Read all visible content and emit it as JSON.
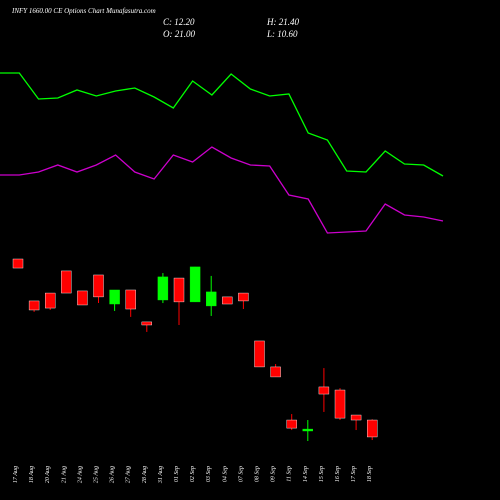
{
  "header": {
    "title": "INFY 1660.00 CE Options Chart Munafasutra.com",
    "close": "C: 12.20",
    "high": "H: 21.40",
    "open": "O: 21.00",
    "low": "L: 10.60"
  },
  "chart_data": [
    {
      "type": "line",
      "series": [
        {
          "color": "#00ff00",
          "values": [
            177,
            177,
            151,
            152,
            160,
            154,
            159,
            162,
            153,
            142,
            169,
            155,
            176,
            161,
            154,
            156,
            117,
            110,
            79,
            78,
            99,
            86,
            85,
            74
          ]
        },
        {
          "color": "#cc00cc",
          "values": [
            75,
            75,
            78,
            85,
            78,
            85,
            95,
            78,
            71,
            95,
            88,
            103,
            92,
            85,
            84,
            55,
            51,
            17,
            18,
            19,
            46,
            35,
            33,
            29
          ]
        }
      ]
    },
    {
      "type": "candlestick",
      "up_color": "#00ff00",
      "down_color": "#ff0000",
      "categories": [
        "17 Aug",
        "18 Aug",
        "20 Aug",
        "21 Aug",
        "24 Aug",
        "25 Aug",
        "26 Aug",
        "27 Aug",
        "28 Aug",
        "31 Aug",
        "01 Sep",
        "02 Sep",
        "03 Sep",
        "04 Sep",
        "07 Sep",
        "08 Sep",
        "09 Sep",
        "11 Sep",
        "14 Sep",
        "15 Sep",
        "16 Sep",
        "17 Sep",
        "18 Sep"
      ],
      "open": [
        104.7,
        82.9,
        87.0,
        98.5,
        88.1,
        96.4,
        81.3,
        88.6,
        72.0,
        83.4,
        94.8,
        82.4,
        80.3,
        85.0,
        87.0,
        62.1,
        48.6,
        21.0,
        15.3,
        38.2,
        36.6,
        23.6,
        21.0
      ],
      "high": [
        104.7,
        82.9,
        87.0,
        98.5,
        88.1,
        96.4,
        88.6,
        88.6,
        72.0,
        97.4,
        94.8,
        100.6,
        95.9,
        85.0,
        87.0,
        62.1,
        50.1,
        24.1,
        21.0,
        48.0,
        37.6,
        23.6,
        21.4
      ],
      "low": [
        100.0,
        77.2,
        78.2,
        87.0,
        80.8,
        81.8,
        77.7,
        74.6,
        66.8,
        81.8,
        70.4,
        82.4,
        75.1,
        81.3,
        78.7,
        48.6,
        43.4,
        15.8,
        10.1,
        25.2,
        21.0,
        15.8,
        10.6
      ],
      "close": [
        100.0,
        78.2,
        79.2,
        87.0,
        80.8,
        85.0,
        88.6,
        78.7,
        70.4,
        95.4,
        82.4,
        100.6,
        87.6,
        81.3,
        82.9,
        48.6,
        43.4,
        16.8,
        16.3,
        34.5,
        22.0,
        21.0,
        12.2
      ]
    }
  ]
}
